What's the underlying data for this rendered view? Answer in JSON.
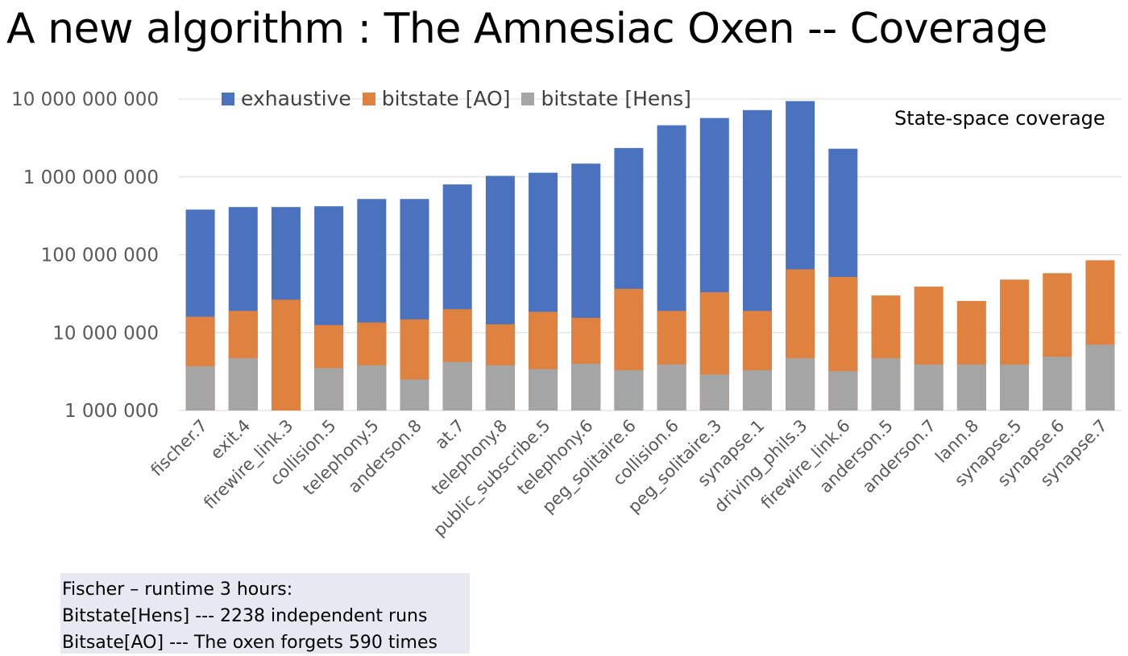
{
  "slide": {
    "title": "A new algorithm : The Amnesiac Oxen -- Coverage",
    "annotation": "State-space coverage",
    "note_lines": [
      "Fischer – runtime 3 hours:",
      "Bitstate[Hens] --- 2238 independent runs",
      "Bitsate[AO] --- The oxen forgets 590 times"
    ]
  },
  "chart_data": {
    "type": "bar",
    "stacked": false,
    "overlapping_bars": true,
    "yscale": "log",
    "ylim": [
      1000000,
      10000000000
    ],
    "yticks": [
      1000000,
      10000000,
      100000000,
      1000000000,
      10000000000
    ],
    "ytick_labels": [
      "1 000 000",
      "10 000 000",
      "100 000 000",
      "1 000 000 000",
      "10 000 000 000"
    ],
    "grid": true,
    "legend_position": "top",
    "xlabel": "",
    "ylabel": "",
    "categories": [
      "fischer.7",
      "exit.4",
      "firewire_link.3",
      "collision.5",
      "telephony.5",
      "anderson.8",
      "at.7",
      "telephony.8",
      "public_subscribe.5",
      "telephony.6",
      "peg_solitaire.6",
      "collision.6",
      "peg_solitaire.3",
      "synapse.1",
      "driving_phils.3",
      "firewire_link.6",
      "anderson.5",
      "anderson.7",
      "lann.8",
      "synapse.5",
      "synapse.6",
      "synapse.7"
    ],
    "series": [
      {
        "name": "exhaustive",
        "color": "#4a72bf",
        "values": [
          380000000,
          410000000,
          410000000,
          420000000,
          520000000,
          520000000,
          800000000,
          1030000000,
          1130000000,
          1480000000,
          2350000000,
          4600000000,
          5700000000,
          7200000000,
          9400000000,
          2300000000,
          null,
          null,
          null,
          null,
          null,
          null
        ]
      },
      {
        "name": "bitstate [AO]",
        "color": "#e0823f",
        "values": [
          16000000,
          19000000,
          26500000,
          12500000,
          13500000,
          14800000,
          20000000,
          12800000,
          18500000,
          15500000,
          36500000,
          19000000,
          33000000,
          19000000,
          65000000,
          52000000,
          30000000,
          39000000,
          25500000,
          48000000,
          58000000,
          85000000
        ]
      },
      {
        "name": "bitstate [Hens]",
        "color": "#a5a5a5",
        "values": [
          3700000,
          4700000,
          null,
          3500000,
          3800000,
          2500000,
          4200000,
          3800000,
          3400000,
          4000000,
          3300000,
          3900000,
          2900000,
          3300000,
          4700000,
          3200000,
          4700000,
          3900000,
          3900000,
          3900000,
          4900000,
          7000000
        ]
      }
    ]
  }
}
